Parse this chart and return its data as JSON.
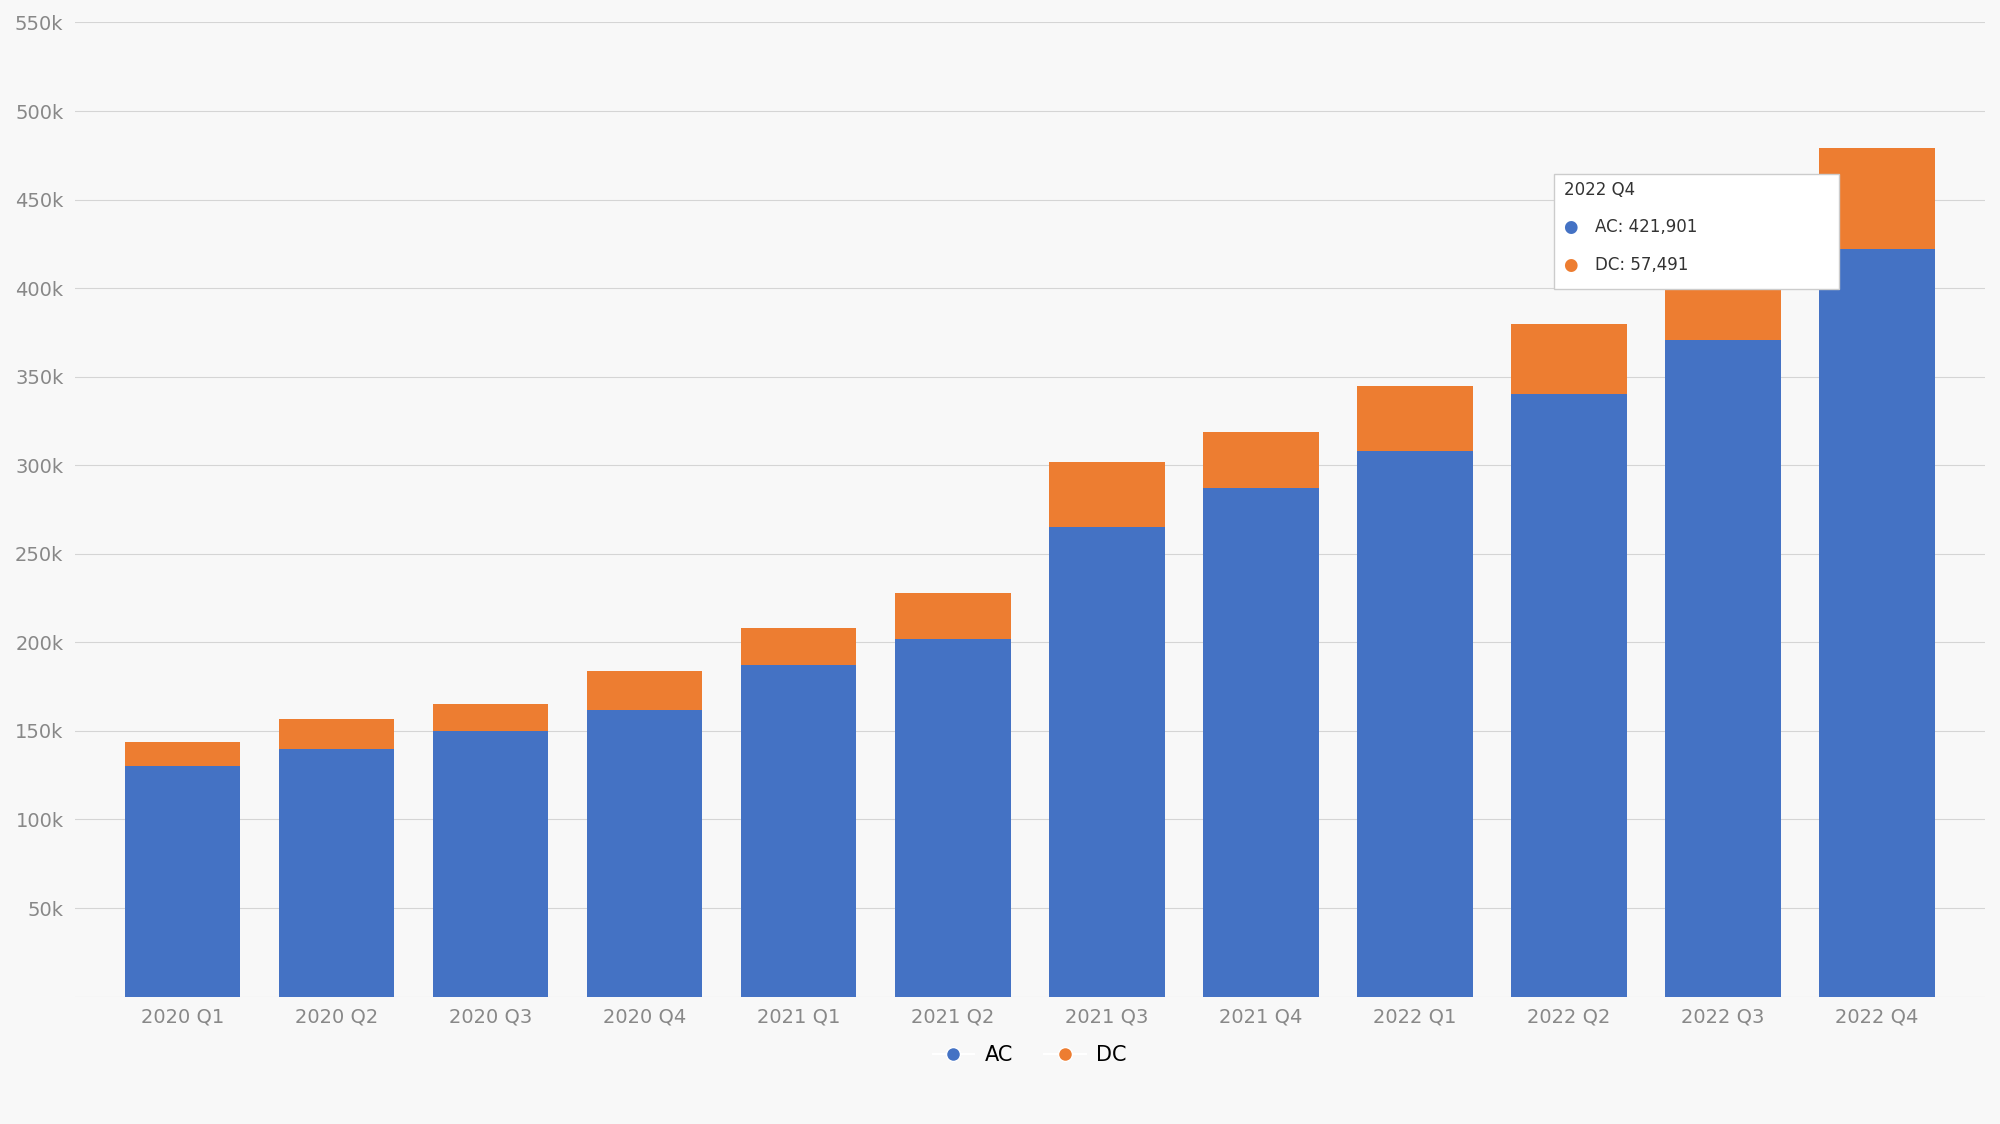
{
  "categories": [
    "2020 Q1",
    "2020 Q2",
    "2020 Q3",
    "2020 Q4",
    "2021 Q1",
    "2021 Q2",
    "2021 Q3",
    "2021 Q4",
    "2022 Q1",
    "2022 Q2",
    "2022 Q3",
    "2022 Q4"
  ],
  "ac_values": [
    130000,
    140000,
    150000,
    162000,
    187000,
    202000,
    265000,
    287000,
    308000,
    340000,
    371000,
    421901
  ],
  "dc_values": [
    14000,
    17000,
    15000,
    22000,
    21000,
    26000,
    37000,
    32000,
    37000,
    40000,
    47000,
    57491
  ],
  "ac_color": "#4472C4",
  "dc_color": "#ED7D31",
  "background_color": "#f8f8f8",
  "grid_color": "#d5d5d5",
  "ylim_max": 550000,
  "yticks": [
    0,
    50000,
    100000,
    150000,
    200000,
    250000,
    300000,
    350000,
    400000,
    450000,
    500000,
    550000
  ],
  "ytick_labels": [
    "",
    "50k",
    "100k",
    "150k",
    "200k",
    "250k",
    "300k",
    "350k",
    "400k",
    "450k",
    "500k",
    "550k"
  ],
  "tooltip_quarter": "2022 Q4",
  "tooltip_ac": "421,901",
  "tooltip_dc": "57,491",
  "tooltip_idx": 11,
  "legend_ac": "AC",
  "legend_dc": "DC",
  "bar_width": 0.75
}
